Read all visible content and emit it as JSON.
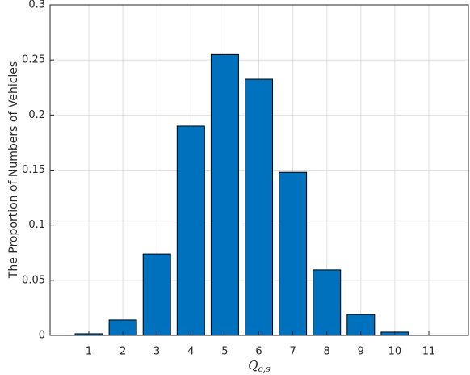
{
  "chart_data": {
    "type": "bar",
    "xlabel": "Q",
    "xlabel_subscript": "c,s",
    "ylabel": "The Proportion of Numbers of Vehicles",
    "categories": [
      "1",
      "2",
      "3",
      "4",
      "5",
      "6",
      "7",
      "8",
      "9",
      "10",
      "11"
    ],
    "values": [
      0.0015,
      0.014,
      0.074,
      0.19,
      0.255,
      0.2325,
      0.148,
      0.0595,
      0.019,
      0.003,
      0
    ],
    "color": "#0072bd",
    "edge_color": "#000000",
    "ylim": [
      0,
      0.3
    ],
    "yticks": [
      0,
      0.05,
      0.1,
      0.15,
      0.2,
      0.25,
      0.3
    ],
    "grid": true
  }
}
